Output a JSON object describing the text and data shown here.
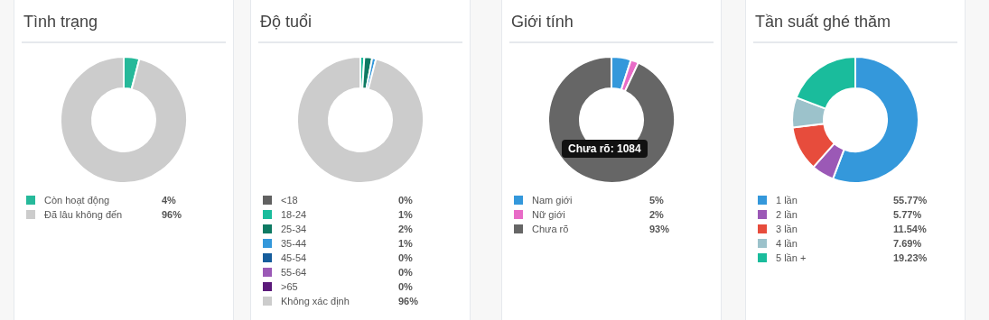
{
  "chart_data": [
    {
      "type": "donut",
      "title": "Tình trạng",
      "categories": [
        "Còn hoạt động",
        "Đã lâu không đến"
      ],
      "values": [
        4,
        96
      ],
      "colors": [
        "#26b99a",
        "#cccccc"
      ],
      "value_labels": [
        "4%",
        "96%"
      ],
      "legend": "bottom"
    },
    {
      "type": "donut",
      "title": "Độ tuổi",
      "categories": [
        "<18",
        "18-24",
        "25-34",
        "35-44",
        "45-54",
        "55-64",
        ">65",
        "Không xác định"
      ],
      "values": [
        0,
        1,
        2,
        1,
        0,
        0,
        0,
        96
      ],
      "colors": [
        "#616161",
        "#1abc9c",
        "#0e7a63",
        "#3498db",
        "#165d9c",
        "#9b59b6",
        "#5b1a7a",
        "#cccccc"
      ],
      "value_labels": [
        "0%",
        "1%",
        "2%",
        "1%",
        "0%",
        "0%",
        "0%",
        "96%"
      ],
      "legend": "bottom"
    },
    {
      "type": "donut",
      "title": "Giới tính",
      "categories": [
        "Nam giới",
        "Nữ giới",
        "Chưa rõ"
      ],
      "values": [
        5,
        2,
        93
      ],
      "colors": [
        "#3498db",
        "#e86bc7",
        "#666666"
      ],
      "value_labels": [
        "5%",
        "2%",
        "93%"
      ],
      "legend": "bottom",
      "annotations": [
        "Chưa rõ: 1084"
      ]
    },
    {
      "type": "donut",
      "title": "Tần suất ghé thăm",
      "categories": [
        "1 lần",
        "2 lần",
        "3 lần",
        "4 lần",
        "5 lần +"
      ],
      "values": [
        55.77,
        5.77,
        11.54,
        7.69,
        19.23
      ],
      "colors": [
        "#3498db",
        "#9b59b6",
        "#e74c3c",
        "#9cc2cb",
        "#1abc9c"
      ],
      "value_labels": [
        "55.77%",
        "5.77%",
        "11.54%",
        "7.69%",
        "19.23%"
      ],
      "legend": "bottom"
    }
  ]
}
